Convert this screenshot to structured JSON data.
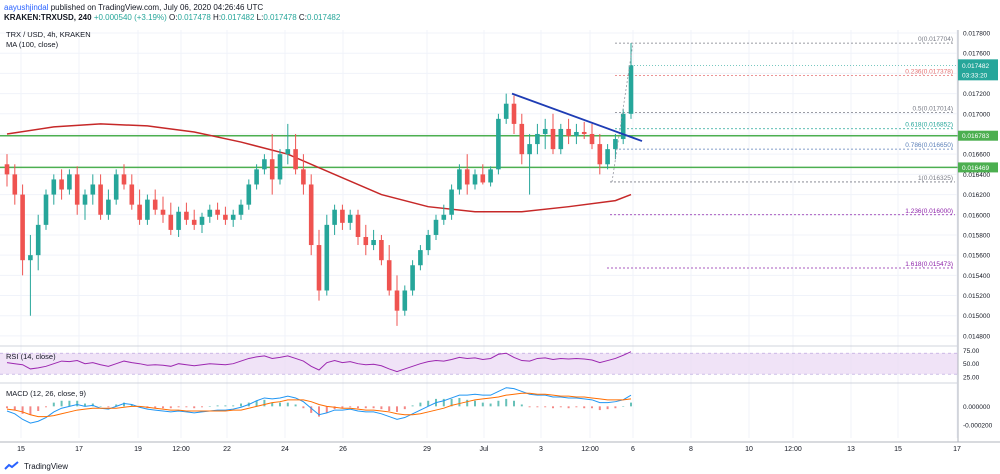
{
  "header": {
    "author": "aayushjindal",
    "published": "published on TradingView.com, July 06, 2020 04:26:46 UTC",
    "symbol": "KRAKEN:TRXUSD, 240",
    "change": "+0.000540 (+3.19%)",
    "o": "0.017478",
    "h": "0.017482",
    "l": "0.017478",
    "c": "0.017482"
  },
  "legend": {
    "symbol_line": "TRX / USD, 4h, KRAKEN",
    "ma_line": "MA (100, close)",
    "rsi_title": "RSI (14, close)",
    "macd_title": "MACD (12, 26, close, 9)"
  },
  "footer": {
    "brand": "TradingView"
  },
  "colors": {
    "up": "#26a69a",
    "down": "#ef5350",
    "ma": "#c62828",
    "trend": "#1e3cb4",
    "hline": "#4caf50",
    "fib_red": "#e57373",
    "fib_green": "#26a69a",
    "fib_blue": "#5b7fb8",
    "fib_purple": "#8e24aa",
    "rsi_band": "#ead7f3",
    "rsi_line": "#9c27b0",
    "macd": "#2196f3",
    "signal": "#ff6d00"
  },
  "chart_data": {
    "type": "candlestick",
    "symbol": "TRX / USD",
    "interval": "4h",
    "exchange": "KRAKEN",
    "y_ticks": [
      "0.017800",
      "0.017600",
      "0.017400",
      "0.017200",
      "0.017000",
      "0.016800",
      "0.016600",
      "0.016400",
      "0.016200",
      "0.016000",
      "0.015800",
      "0.015600",
      "0.015400",
      "0.015200",
      "0.015000",
      "0.014800"
    ],
    "ylim": [
      0.01472,
      0.01783
    ],
    "x_ticks": [
      "15",
      "17",
      "19",
      "12:00",
      "22",
      "24",
      "26",
      "29",
      "Jul",
      "3",
      "12:00",
      "6",
      "8",
      "10",
      "12:00",
      "13",
      "15",
      "17"
    ],
    "price_label": "0.017482",
    "countdown_label": "03:33:20",
    "horizontal_levels": [
      {
        "value": 0.016783,
        "label": "0.016783"
      },
      {
        "value": 0.016469,
        "label": "0.016469"
      }
    ],
    "fib_levels": [
      {
        "ratio": "0",
        "value": 0.0177,
        "label": "0(0.017704)"
      },
      {
        "ratio": "0.236",
        "value": 0.017378,
        "label": "0.236(0.017378)"
      },
      {
        "ratio": "0.5",
        "value": 0.017014,
        "label": "0.5(0.017014)"
      },
      {
        "ratio": "0.618",
        "value": 0.016852,
        "label": "0.618(0.016852)"
      },
      {
        "ratio": "0.786",
        "value": 0.01665,
        "label": "0.786(0.016650)"
      },
      {
        "ratio": "1",
        "value": 0.016325,
        "label": "1(0.016325)"
      },
      {
        "ratio": "1.236",
        "value": 0.016,
        "label": "1.236(0.016000)"
      },
      {
        "ratio": "1.618",
        "value": 0.015473,
        "label": "1.618(0.015473)"
      }
    ],
    "trendline": {
      "start_value": 0.0172,
      "end_value": 0.01673
    },
    "candles": [
      [
        0.0165,
        0.0166,
        0.01628,
        0.0164
      ],
      [
        0.0164,
        0.0165,
        0.0161,
        0.0162
      ],
      [
        0.0162,
        0.0163,
        0.0154,
        0.01555
      ],
      [
        0.01555,
        0.0158,
        0.015,
        0.0156
      ],
      [
        0.0156,
        0.016,
        0.01545,
        0.0159
      ],
      [
        0.0159,
        0.01625,
        0.01585,
        0.0162
      ],
      [
        0.0162,
        0.0164,
        0.0161,
        0.01635
      ],
      [
        0.01635,
        0.01645,
        0.01615,
        0.01625
      ],
      [
        0.01625,
        0.01645,
        0.0162,
        0.0164
      ],
      [
        0.0164,
        0.01648,
        0.016,
        0.0161
      ],
      [
        0.0161,
        0.01625,
        0.01595,
        0.0162
      ],
      [
        0.0162,
        0.0164,
        0.0161,
        0.0163
      ],
      [
        0.0163,
        0.0164,
        0.01595,
        0.016
      ],
      [
        0.016,
        0.01625,
        0.01595,
        0.01615
      ],
      [
        0.01615,
        0.01645,
        0.0161,
        0.0164
      ],
      [
        0.0164,
        0.0165,
        0.01625,
        0.0163
      ],
      [
        0.0163,
        0.0164,
        0.01605,
        0.0161
      ],
      [
        0.0161,
        0.01625,
        0.0159,
        0.01595
      ],
      [
        0.01595,
        0.0162,
        0.0159,
        0.01615
      ],
      [
        0.01615,
        0.01625,
        0.016,
        0.01605
      ],
      [
        0.01605,
        0.01618,
        0.01592,
        0.016
      ],
      [
        0.016,
        0.01612,
        0.0158,
        0.01585
      ],
      [
        0.01585,
        0.01608,
        0.01578,
        0.01603
      ],
      [
        0.01603,
        0.01612,
        0.0159,
        0.01595
      ],
      [
        0.01595,
        0.01605,
        0.01585,
        0.0159
      ],
      [
        0.0159,
        0.01602,
        0.01582,
        0.01598
      ],
      [
        0.01598,
        0.0161,
        0.01592,
        0.01605
      ],
      [
        0.01605,
        0.01612,
        0.01595,
        0.016
      ],
      [
        0.016,
        0.01608,
        0.0159,
        0.01595
      ],
      [
        0.01595,
        0.01605,
        0.01588,
        0.016
      ],
      [
        0.016,
        0.01615,
        0.01595,
        0.0161
      ],
      [
        0.0161,
        0.01635,
        0.01605,
        0.0163
      ],
      [
        0.0163,
        0.0165,
        0.01625,
        0.01645
      ],
      [
        0.01645,
        0.0166,
        0.0164,
        0.01655
      ],
      [
        0.01655,
        0.0168,
        0.0162,
        0.01635
      ],
      [
        0.01635,
        0.01665,
        0.0163,
        0.0166
      ],
      [
        0.0166,
        0.0169,
        0.0165,
        0.01665
      ],
      [
        0.01665,
        0.0168,
        0.0164,
        0.01645
      ],
      [
        0.01645,
        0.0166,
        0.0162,
        0.0163
      ],
      [
        0.0163,
        0.0164,
        0.0156,
        0.0157
      ],
      [
        0.0157,
        0.01585,
        0.01515,
        0.01525
      ],
      [
        0.01525,
        0.016,
        0.0152,
        0.0159
      ],
      [
        0.0159,
        0.0161,
        0.0158,
        0.01605
      ],
      [
        0.01605,
        0.0161,
        0.01585,
        0.01592
      ],
      [
        0.01592,
        0.01605,
        0.01585,
        0.016
      ],
      [
        0.016,
        0.01605,
        0.0157,
        0.01578
      ],
      [
        0.01578,
        0.0159,
        0.0156,
        0.0157
      ],
      [
        0.0157,
        0.01585,
        0.01565,
        0.01575
      ],
      [
        0.01575,
        0.0158,
        0.0155,
        0.01555
      ],
      [
        0.01555,
        0.0157,
        0.0152,
        0.01525
      ],
      [
        0.01525,
        0.0154,
        0.0149,
        0.01505
      ],
      [
        0.01505,
        0.0153,
        0.015,
        0.01525
      ],
      [
        0.01525,
        0.01555,
        0.0152,
        0.0155
      ],
      [
        0.0155,
        0.0157,
        0.01545,
        0.01565
      ],
      [
        0.01565,
        0.01585,
        0.0156,
        0.0158
      ],
      [
        0.0158,
        0.016,
        0.01575,
        0.01595
      ],
      [
        0.01595,
        0.0161,
        0.0159,
        0.016
      ],
      [
        0.016,
        0.0163,
        0.01595,
        0.01625
      ],
      [
        0.01625,
        0.0165,
        0.0162,
        0.01645
      ],
      [
        0.01645,
        0.0166,
        0.0162,
        0.0163
      ],
      [
        0.0163,
        0.01645,
        0.01625,
        0.0164
      ],
      [
        0.0164,
        0.0165,
        0.0163,
        0.01632
      ],
      [
        0.01632,
        0.01648,
        0.01628,
        0.01645
      ],
      [
        0.01645,
        0.017,
        0.0164,
        0.01695
      ],
      [
        0.01695,
        0.0172,
        0.0169,
        0.0171
      ],
      [
        0.0171,
        0.01718,
        0.0168,
        0.0169
      ],
      [
        0.0169,
        0.017,
        0.0165,
        0.0166
      ],
      [
        0.0166,
        0.0168,
        0.0162,
        0.0167
      ],
      [
        0.0167,
        0.0169,
        0.0166,
        0.0168
      ],
      [
        0.0168,
        0.01695,
        0.01665,
        0.01685
      ],
      [
        0.01685,
        0.017,
        0.0166,
        0.01665
      ],
      [
        0.01665,
        0.0169,
        0.0166,
        0.01685
      ],
      [
        0.01685,
        0.01695,
        0.0167,
        0.01678
      ],
      [
        0.01678,
        0.0169,
        0.0167,
        0.01682
      ],
      [
        0.01682,
        0.01692,
        0.01675,
        0.0168
      ],
      [
        0.0168,
        0.0169,
        0.01665,
        0.0167
      ],
      [
        0.0167,
        0.0168,
        0.0164,
        0.0165
      ],
      [
        0.0165,
        0.0167,
        0.01645,
        0.01665
      ],
      [
        0.01665,
        0.0168,
        0.01655,
        0.01675
      ],
      [
        0.01675,
        0.01705,
        0.0167,
        0.017
      ],
      [
        0.017,
        0.0177,
        0.01695,
        0.01748
      ]
    ],
    "ma_100": [
      [
        0,
        0.0168
      ],
      [
        6,
        0.01687
      ],
      [
        12,
        0.0169
      ],
      [
        18,
        0.01688
      ],
      [
        24,
        0.01682
      ],
      [
        30,
        0.01672
      ],
      [
        36,
        0.0166
      ],
      [
        42,
        0.0164
      ],
      [
        48,
        0.0162
      ],
      [
        54,
        0.01608
      ],
      [
        60,
        0.01603
      ],
      [
        66,
        0.01603
      ],
      [
        72,
        0.01608
      ],
      [
        78,
        0.01614
      ],
      [
        80,
        0.0162
      ]
    ],
    "rsi": {
      "title": "RSI (14, close)",
      "ticks": [
        "75.00",
        "50.00",
        "25.00"
      ],
      "ylim": [
        15,
        80
      ],
      "band": [
        30,
        70
      ],
      "values": [
        52,
        50,
        48,
        40,
        42,
        45,
        50,
        55,
        54,
        56,
        50,
        52,
        48,
        45,
        50,
        55,
        52,
        50,
        47,
        48,
        47,
        45,
        50,
        48,
        46,
        48,
        50,
        49,
        48,
        50,
        55,
        60,
        63,
        65,
        60,
        62,
        65,
        60,
        55,
        45,
        38,
        52,
        56,
        52,
        54,
        50,
        48,
        49,
        46,
        40,
        35,
        40,
        45,
        50,
        54,
        56,
        55,
        58,
        62,
        60,
        61,
        58,
        60,
        68,
        70,
        62,
        56,
        55,
        60,
        61,
        58,
        60,
        59,
        60,
        59,
        57,
        52,
        56,
        60,
        66,
        73
      ]
    },
    "macd": {
      "title": "MACD (12, 26, close, 9)",
      "ticks": [
        "0.000000",
        "-0.000200"
      ],
      "ylim": [
        -0.00034,
        0.00024
      ],
      "macd": [
        -5e-05,
        -8e-05,
        -0.00014,
        -0.00018,
        -0.00016,
        -0.00012,
        -6e-05,
        -2e-05,
        0.0,
        2e-05,
        0.0,
        1e-05,
        -2e-05,
        -3e-05,
        0.0,
        3e-05,
        2e-05,
        -1e-05,
        -3e-05,
        -4e-05,
        -5e-05,
        -6e-05,
        -5e-05,
        -6e-05,
        -7e-05,
        -6e-05,
        -5e-05,
        -4e-05,
        -4e-05,
        -3e-05,
        -1e-05,
        2e-05,
        6e-05,
        9e-05,
        8e-05,
        9e-05,
        0.00011,
        9e-05,
        5e-05,
        -2e-05,
        -9e-05,
        -7e-05,
        -4e-05,
        -4e-05,
        -3e-05,
        -5e-05,
        -6e-05,
        -6e-05,
        -8e-05,
        -0.00011,
        -0.00014,
        -0.00012,
        -8e-05,
        -4e-05,
        0.0,
        4e-05,
        6e-05,
        9e-05,
        0.00012,
        0.00012,
        0.00013,
        0.00012,
        0.00012,
        0.00016,
        0.0002,
        0.00019,
        0.00016,
        0.00013,
        0.00012,
        0.00012,
        0.0001,
        0.0001,
        9e-05,
        9e-05,
        8e-05,
        7e-05,
        4e-05,
        4e-05,
        5e-05,
        7e-05,
        0.00012
      ],
      "signal": [
        -3e-05,
        -4e-05,
        -6e-05,
        -9e-05,
        -0.00011,
        -0.00011,
        -0.0001,
        -8e-05,
        -6e-05,
        -4e-05,
        -3e-05,
        -2e-05,
        -2e-05,
        -2e-05,
        -2e-05,
        -1e-05,
        0.0,
        0.0,
        -1e-05,
        -2e-05,
        -3e-05,
        -4e-05,
        -4e-05,
        -5e-05,
        -5e-05,
        -5e-05,
        -5e-05,
        -5e-05,
        -5e-05,
        -4e-05,
        -4e-05,
        -2e-05,
        0.0,
        2e-05,
        4e-05,
        5e-05,
        7e-05,
        7e-05,
        7e-05,
        5e-05,
        2e-05,
        0.0,
        -1e-05,
        -2e-05,
        -2e-05,
        -3e-05,
        -4e-05,
        -4e-05,
        -5e-05,
        -6e-05,
        -8e-05,
        -9e-05,
        -9e-05,
        -8e-05,
        -6e-05,
        -4e-05,
        -2e-05,
        1e-05,
        3e-05,
        5e-05,
        7e-05,
        8e-05,
        9e-05,
        0.0001,
        0.00012,
        0.00013,
        0.00014,
        0.00014,
        0.00013,
        0.00013,
        0.00012,
        0.00011,
        0.00011,
        0.0001,
        0.0001,
        9e-05,
        8e-05,
        7e-05,
        7e-05,
        7e-05,
        8e-05
      ]
    }
  }
}
